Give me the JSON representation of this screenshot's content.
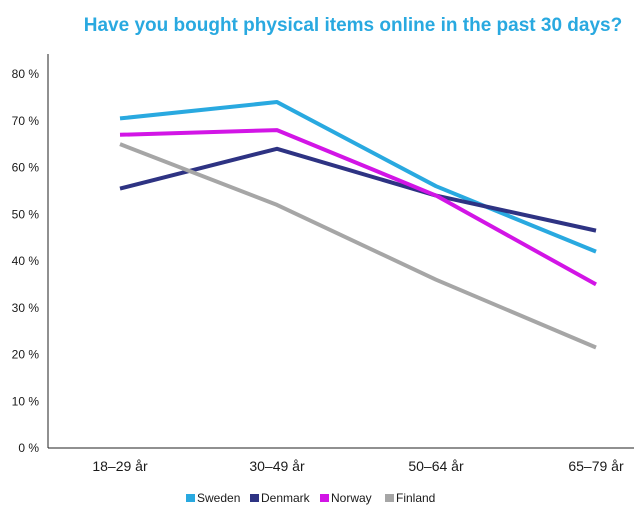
{
  "chart_data": {
    "type": "line",
    "title": "Have you bought physical items online in the past 30 days?",
    "xlabel": "",
    "ylabel": "",
    "categories": [
      "18–29 år",
      "30–49 år",
      "50–64 år",
      "65–79 år"
    ],
    "y_ticks": [
      "0 %",
      "10 %",
      "20 %",
      "30 %",
      "40 %",
      "50 %",
      "60 %",
      "70 %",
      "80 %"
    ],
    "ylim": [
      0,
      80
    ],
    "grid": false,
    "legend_position": "bottom",
    "series": [
      {
        "name": "Sweden",
        "color": "#29a9e0",
        "values": [
          70.5,
          74,
          56,
          42
        ]
      },
      {
        "name": "Denmark",
        "color": "#2e3383",
        "values": [
          55.5,
          64,
          54,
          46.5
        ]
      },
      {
        "name": "Norway",
        "color": "#d215e6",
        "values": [
          67,
          68,
          54,
          35
        ]
      },
      {
        "name": "Finland",
        "color": "#a6a6a6",
        "values": [
          65,
          52,
          36,
          21.5
        ]
      }
    ],
    "title_color": "#29a9e0"
  }
}
